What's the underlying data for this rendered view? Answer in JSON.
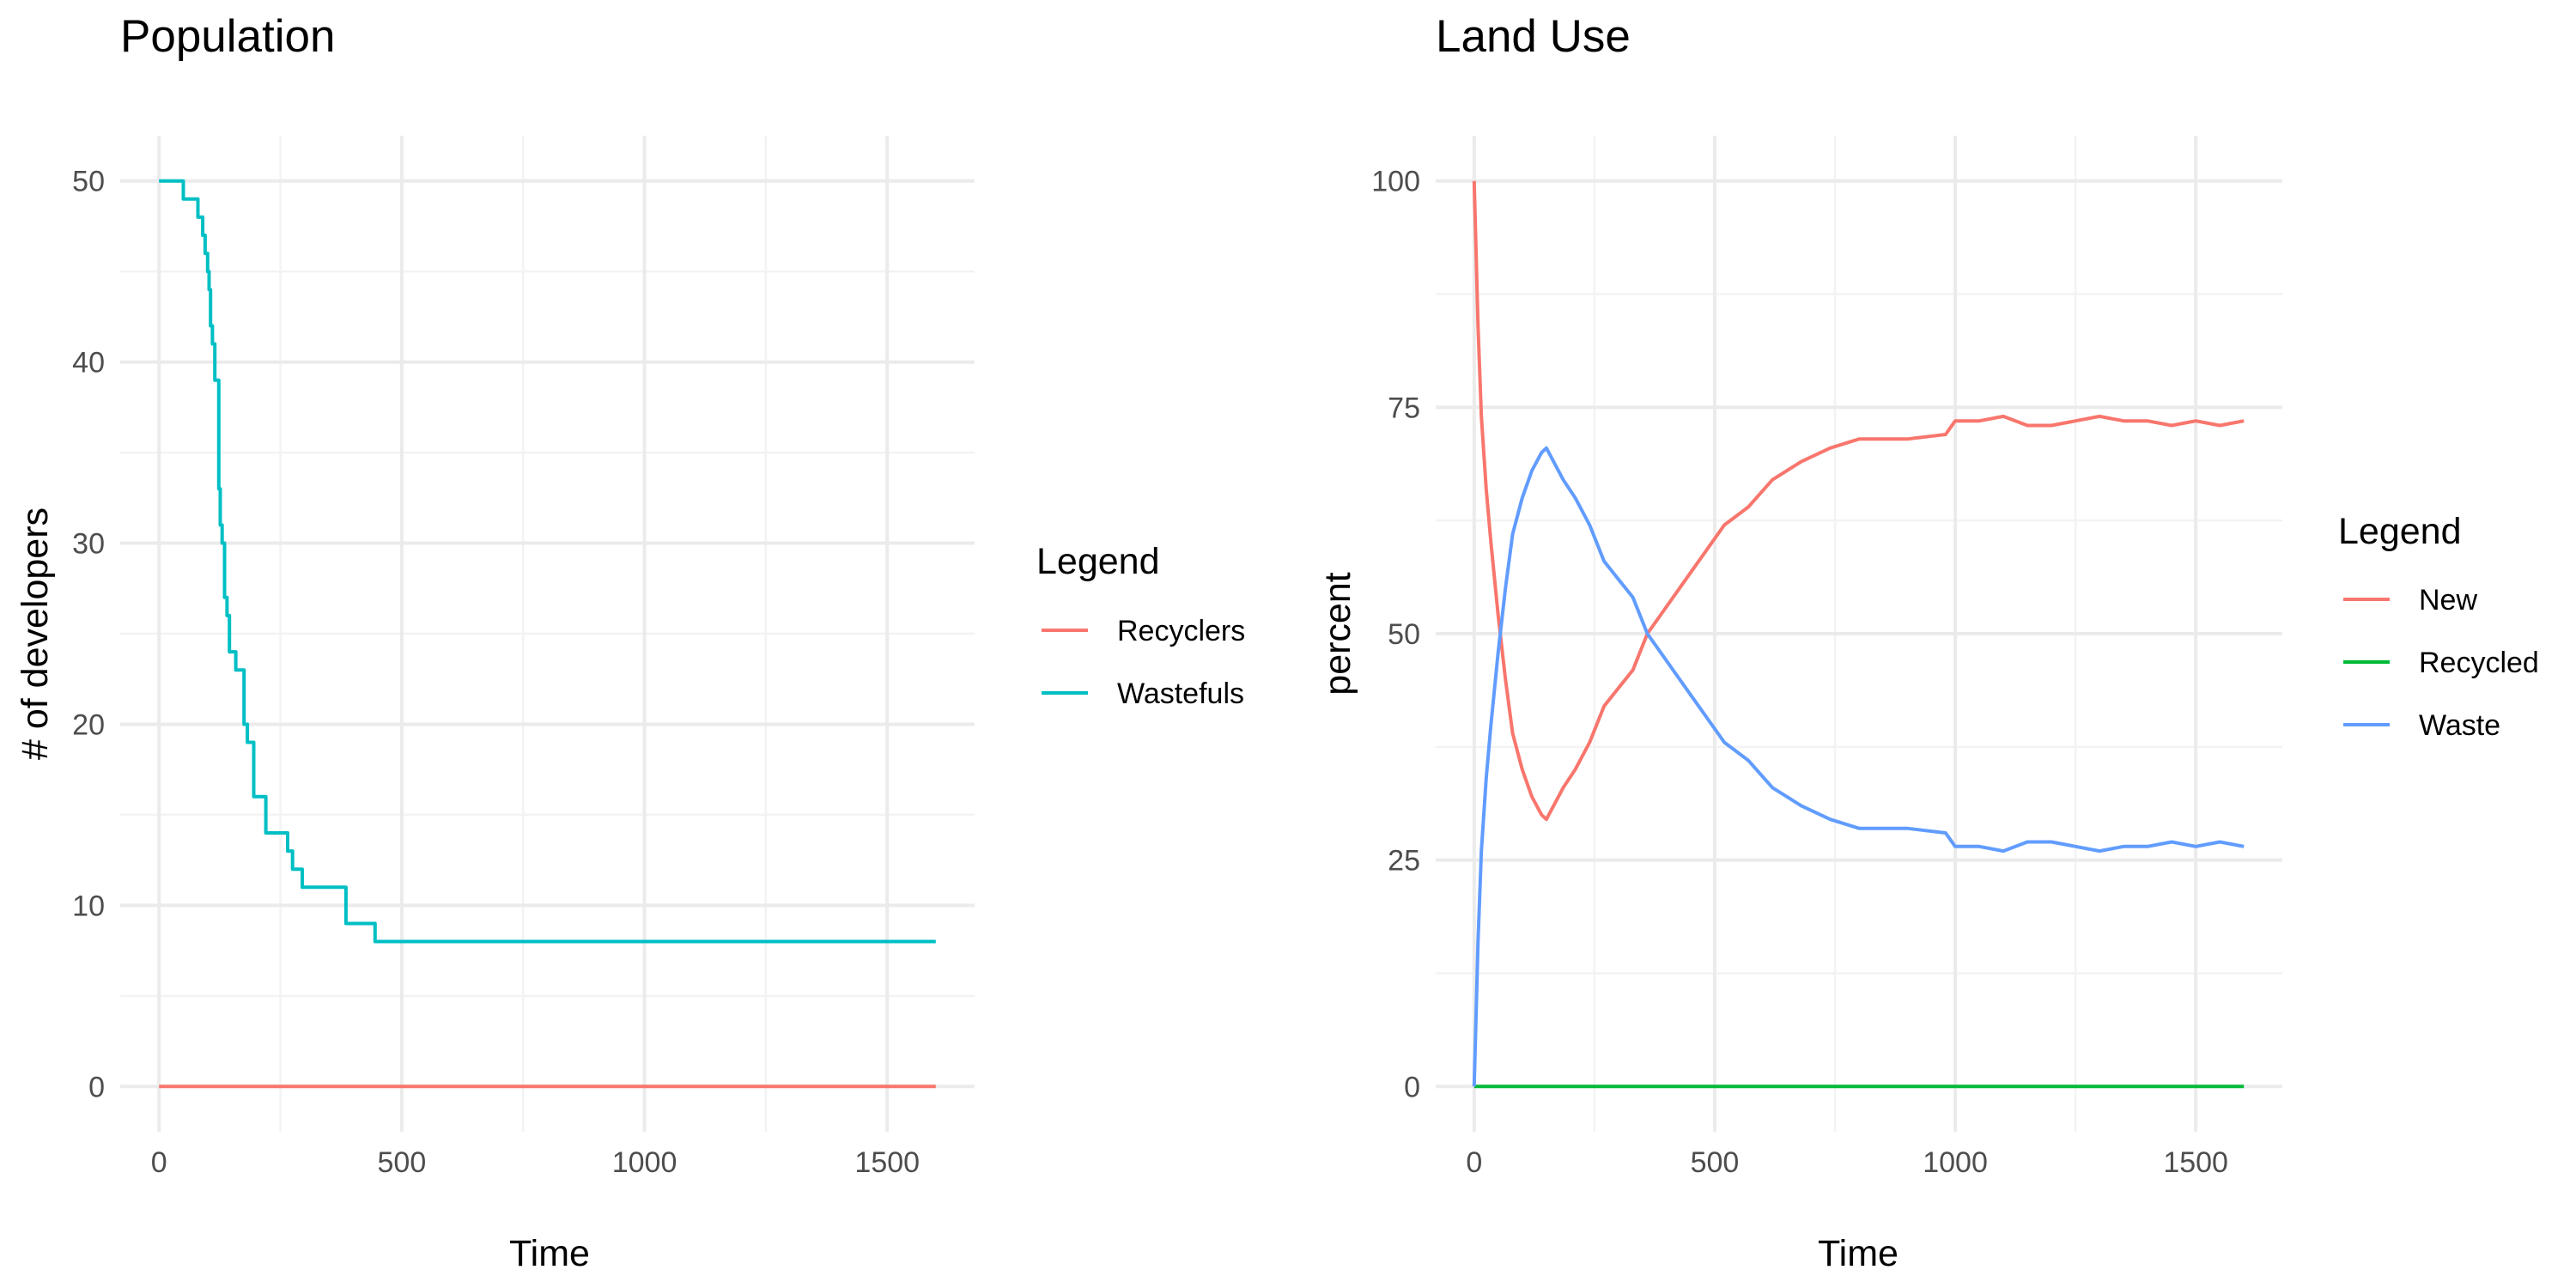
{
  "chart_data": [
    {
      "type": "line",
      "title": "Population",
      "xlabel": "Time",
      "ylabel": "# of developers",
      "xlim": [
        0,
        1600
      ],
      "ylim": [
        0,
        50
      ],
      "x_ticks": [
        0,
        500,
        1000,
        1500
      ],
      "y_ticks": [
        0,
        10,
        20,
        30,
        40,
        50
      ],
      "grid": true,
      "legend": {
        "title": "Legend",
        "placement": "right"
      },
      "series": [
        {
          "name": "Recyclers",
          "color": "#F8766D",
          "shape": "step",
          "points": [
            [
              0,
              0
            ],
            [
              1600,
              0
            ]
          ]
        },
        {
          "name": "Wastefuls",
          "color": "#00BFC4",
          "shape": "step",
          "points": [
            [
              0,
              50
            ],
            [
              50,
              49
            ],
            [
              80,
              48
            ],
            [
              90,
              47
            ],
            [
              95,
              46
            ],
            [
              100,
              45
            ],
            [
              103,
              44
            ],
            [
              106,
              42
            ],
            [
              110,
              41
            ],
            [
              115,
              39
            ],
            [
              123,
              33
            ],
            [
              126,
              31
            ],
            [
              130,
              30
            ],
            [
              135,
              27
            ],
            [
              140,
              26
            ],
            [
              145,
              24
            ],
            [
              158,
              23
            ],
            [
              175,
              20
            ],
            [
              182,
              19
            ],
            [
              195,
              16
            ],
            [
              220,
              14
            ],
            [
              265,
              13
            ],
            [
              275,
              12
            ],
            [
              295,
              11
            ],
            [
              385,
              9
            ],
            [
              445,
              8
            ],
            [
              1600,
              8
            ]
          ]
        }
      ]
    },
    {
      "type": "line",
      "title": "Land Use",
      "xlabel": "Time",
      "ylabel": "percent",
      "xlim": [
        0,
        1600
      ],
      "ylim": [
        0,
        100
      ],
      "x_ticks": [
        0,
        500,
        1000,
        1500
      ],
      "y_ticks": [
        0,
        25,
        50,
        75,
        100
      ],
      "grid": true,
      "legend": {
        "title": "Legend",
        "placement": "right"
      },
      "series": [
        {
          "name": "New",
          "color": "#F8766D",
          "points": [
            [
              0,
              100
            ],
            [
              3,
              94
            ],
            [
              8,
              84
            ],
            [
              15,
              74
            ],
            [
              25,
              66
            ],
            [
              35,
              60
            ],
            [
              50,
              52
            ],
            [
              65,
              45
            ],
            [
              80,
              39
            ],
            [
              100,
              35
            ],
            [
              120,
              32
            ],
            [
              140,
              30
            ],
            [
              150,
              29.5
            ],
            [
              165,
              31
            ],
            [
              185,
              33
            ],
            [
              210,
              35
            ],
            [
              240,
              38
            ],
            [
              270,
              42
            ],
            [
              300,
              44
            ],
            [
              330,
              46
            ],
            [
              360,
              50
            ],
            [
              400,
              53
            ],
            [
              440,
              56
            ],
            [
              480,
              59
            ],
            [
              520,
              62
            ],
            [
              570,
              64
            ],
            [
              620,
              67
            ],
            [
              680,
              69
            ],
            [
              740,
              70.5
            ],
            [
              800,
              71.5
            ],
            [
              900,
              71.5
            ],
            [
              980,
              72
            ],
            [
              1000,
              73.5
            ],
            [
              1050,
              73.5
            ],
            [
              1100,
              74
            ],
            [
              1150,
              73
            ],
            [
              1200,
              73
            ],
            [
              1250,
              73.5
            ],
            [
              1300,
              74
            ],
            [
              1350,
              73.5
            ],
            [
              1400,
              73.5
            ],
            [
              1450,
              73
            ],
            [
              1500,
              73.5
            ],
            [
              1550,
              73
            ],
            [
              1600,
              73.5
            ]
          ]
        },
        {
          "name": "Recycled",
          "color": "#00BA38",
          "points": [
            [
              0,
              0
            ],
            [
              1600,
              0
            ]
          ]
        },
        {
          "name": "Waste",
          "color": "#619CFF",
          "points": [
            [
              0,
              0
            ],
            [
              3,
              6
            ],
            [
              8,
              16
            ],
            [
              15,
              26
            ],
            [
              25,
              34
            ],
            [
              35,
              40
            ],
            [
              50,
              48
            ],
            [
              65,
              55
            ],
            [
              80,
              61
            ],
            [
              100,
              65
            ],
            [
              120,
              68
            ],
            [
              140,
              70
            ],
            [
              150,
              70.5
            ],
            [
              165,
              69
            ],
            [
              185,
              67
            ],
            [
              210,
              65
            ],
            [
              240,
              62
            ],
            [
              270,
              58
            ],
            [
              300,
              56
            ],
            [
              330,
              54
            ],
            [
              360,
              50
            ],
            [
              400,
              47
            ],
            [
              440,
              44
            ],
            [
              480,
              41
            ],
            [
              520,
              38
            ],
            [
              570,
              36
            ],
            [
              620,
              33
            ],
            [
              680,
              31
            ],
            [
              740,
              29.5
            ],
            [
              800,
              28.5
            ],
            [
              900,
              28.5
            ],
            [
              980,
              28
            ],
            [
              1000,
              26.5
            ],
            [
              1050,
              26.5
            ],
            [
              1100,
              26
            ],
            [
              1150,
              27
            ],
            [
              1200,
              27
            ],
            [
              1250,
              26.5
            ],
            [
              1300,
              26
            ],
            [
              1350,
              26.5
            ],
            [
              1400,
              26.5
            ],
            [
              1450,
              27
            ],
            [
              1500,
              26.5
            ],
            [
              1550,
              27
            ],
            [
              1600,
              26.5
            ]
          ]
        }
      ]
    }
  ]
}
